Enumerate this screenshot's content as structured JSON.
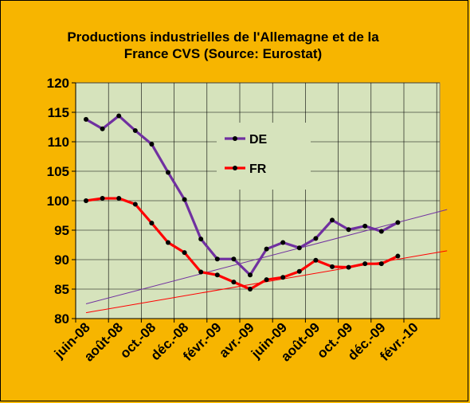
{
  "title_line1": "Productions industrielles de l'Allemagne et de la",
  "title_line2": "France CVS   (Source: Eurostat)",
  "colors": {
    "background": "#F7B500",
    "plot_area": "#D6E3BC",
    "DE": "#7030A0",
    "FR": "#FF0000",
    "marker": "#000000"
  },
  "chart_data": {
    "type": "line",
    "title": "Productions industrielles de l'Allemagne et de la France CVS   (Source: Eurostat)",
    "xlabel": "",
    "ylabel": "",
    "ylim": [
      80,
      120
    ],
    "y_ticks": [
      "80",
      "85",
      "90",
      "95",
      "100",
      "105",
      "110",
      "115",
      "120"
    ],
    "x_tick_labels": [
      "juin-08",
      "août-08",
      "oct.-08",
      "déc.-08",
      "févr.-09",
      "avr.-09",
      "juin-09",
      "août-09",
      "oct.-09",
      "déc.-09",
      "févr.-10"
    ],
    "x": [
      "juin-08",
      "juil.-08",
      "août-08",
      "sept.-08",
      "oct.-08",
      "nov.-08",
      "déc.-08",
      "janv.-09",
      "févr.-09",
      "mars-09",
      "avr.-09",
      "mai-09",
      "juin-09",
      "juil.-09",
      "août-09",
      "sept.-09",
      "oct.-09",
      "nov.-09",
      "déc.-09",
      "janv.-10"
    ],
    "grid": true,
    "legend": "center-left",
    "series": [
      {
        "name": "DE",
        "values": [
          113.8,
          112.2,
          114.4,
          111.9,
          109.6,
          104.8,
          100.2,
          93.5,
          90.1,
          90.1,
          87.4,
          91.8,
          92.9,
          92.0,
          93.6,
          96.7,
          95.1,
          95.7,
          94.8,
          96.3
        ]
      },
      {
        "name": "FR",
        "values": [
          100.0,
          100.4,
          100.4,
          99.4,
          96.2,
          92.9,
          91.2,
          87.9,
          87.4,
          86.2,
          85.0,
          86.6,
          87.0,
          88.0,
          89.9,
          88.8,
          88.7,
          89.3,
          89.3,
          90.6
        ]
      }
    ],
    "trendlines": [
      {
        "series": "DE",
        "start": 82.5,
        "end": 98.5
      },
      {
        "series": "FR",
        "start": 81.0,
        "end": 91.5
      }
    ]
  }
}
